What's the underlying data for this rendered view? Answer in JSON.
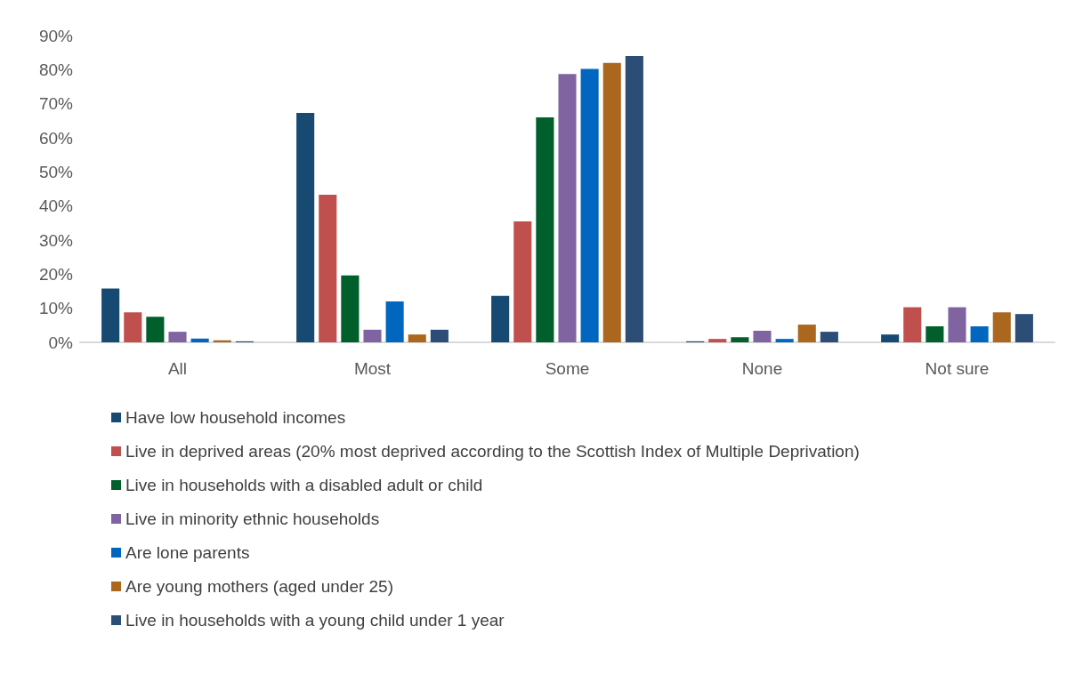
{
  "chart_data": {
    "type": "bar",
    "categories": [
      "All",
      "Most",
      "Some",
      "None",
      "Not sure"
    ],
    "series": [
      {
        "name": "Have low household incomes",
        "color": "#174a72",
        "values": [
          15.8,
          67.3,
          13.6,
          0.3,
          2.3
        ]
      },
      {
        "name": "Live in deprived areas (20% most deprived according to the Scottish Index of Multiple Deprivation)",
        "color": "#c0504d",
        "values": [
          8.8,
          43.3,
          35.5,
          1.0,
          10.3
        ]
      },
      {
        "name": "Live in households with a disabled adult or child",
        "color": "#005f2b",
        "values": [
          7.5,
          19.6,
          66.0,
          1.5,
          4.7
        ]
      },
      {
        "name": "Live in minority ethnic households",
        "color": "#8064a2",
        "values": [
          3.1,
          3.7,
          78.7,
          3.4,
          10.3
        ]
      },
      {
        "name": "Are lone parents",
        "color": "#0066bf",
        "values": [
          1.1,
          12.0,
          80.2,
          1.0,
          4.7
        ]
      },
      {
        "name": "Are young mothers (aged under 25)",
        "color": "#ab671e",
        "values": [
          0.6,
          2.3,
          82.0,
          5.2,
          8.8
        ]
      },
      {
        "name": "Live in households with a young child under 1 year",
        "color": "#2c4d75",
        "values": [
          0.3,
          3.7,
          84.0,
          3.1,
          8.3
        ]
      }
    ],
    "ylim": [
      0,
      90
    ],
    "yticks": [
      {
        "value": 0,
        "label": "0%"
      },
      {
        "value": 10,
        "label": "10%"
      },
      {
        "value": 20,
        "label": "20%"
      },
      {
        "value": 30,
        "label": "30%"
      },
      {
        "value": 40,
        "label": "40%"
      },
      {
        "value": 50,
        "label": "50%"
      },
      {
        "value": 60,
        "label": "60%"
      },
      {
        "value": 70,
        "label": "70%"
      },
      {
        "value": 80,
        "label": "80%"
      },
      {
        "value": 90,
        "label": "90%"
      }
    ],
    "grid": false,
    "legend": "bottom"
  }
}
